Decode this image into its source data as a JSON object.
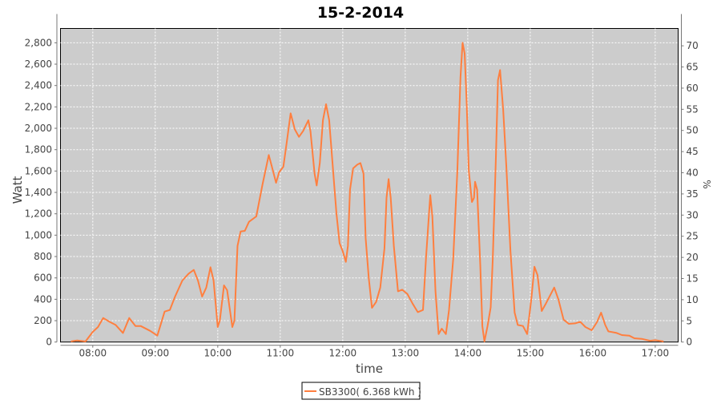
{
  "chart_data": {
    "type": "line",
    "title": "15-2-2014",
    "xlabel": "time",
    "ylabel": "Watt",
    "ylabel_right": "%",
    "xlim": [
      "07:29",
      "17:22"
    ],
    "ylim": [
      0,
      2934
    ],
    "ylim_right": [
      0,
      74.1
    ],
    "grid": true,
    "x_ticks": [
      "08:00",
      "09:00",
      "10:00",
      "11:00",
      "12:00",
      "13:00",
      "14:00",
      "15:00",
      "16:00",
      "17:00"
    ],
    "y_ticks": [
      "0",
      "200",
      "400",
      "600",
      "800",
      "1,000",
      "1,200",
      "1,400",
      "1,600",
      "1,800",
      "2,000",
      "2,200",
      "2,400",
      "2,600",
      "2,800"
    ],
    "y_ticks_right": [
      "0",
      "5",
      "10",
      "15",
      "20",
      "25",
      "30",
      "35",
      "40",
      "45",
      "50",
      "55",
      "60",
      "65",
      "70"
    ],
    "legend_position": "bottom",
    "plot_background": "#cccccc",
    "series": [
      {
        "name": "SB3300( 6.368 kWh )",
        "color": "#ff7f3f",
        "x": [
          "07:39",
          "07:45",
          "07:53",
          "08:00",
          "08:05",
          "08:10",
          "08:16",
          "08:22",
          "08:29",
          "08:35",
          "08:41",
          "08:46",
          "08:55",
          "09:02",
          "09:09",
          "09:14",
          "09:19",
          "09:26",
          "09:32",
          "09:37",
          "09:41",
          "09:45",
          "09:49",
          "09:53",
          "09:56",
          "10:00",
          "10:02",
          "10:06",
          "10:09",
          "10:14",
          "10:16",
          "10:19",
          "10:22",
          "10:26",
          "10:30",
          "10:37",
          "10:39",
          "10:43",
          "10:49",
          "10:52",
          "10:56",
          "10:59",
          "11:03",
          "11:06",
          "11:10",
          "11:14",
          "11:18",
          "11:22",
          "11:27",
          "11:29",
          "11:33",
          "11:35",
          "11:38",
          "11:41",
          "11:44",
          "11:47",
          "11:50",
          "11:54",
          "11:57",
          "12:00",
          "12:03",
          "12:05",
          "12:07",
          "12:10",
          "12:14",
          "12:17",
          "12:20",
          "12:22",
          "12:25",
          "12:28",
          "12:32",
          "12:36",
          "12:40",
          "12:42",
          "12:44",
          "12:46",
          "12:49",
          "12:53",
          "12:57",
          "13:02",
          "13:07",
          "13:12",
          "13:17",
          "13:20",
          "13:24",
          "13:26",
          "13:29",
          "13:32",
          "13:35",
          "13:39",
          "13:42",
          "13:46",
          "13:50",
          "13:53",
          "13:55",
          "13:57",
          "13:59",
          "14:01",
          "14:04",
          "14:06",
          "14:07",
          "14:09",
          "14:12",
          "14:14",
          "14:16",
          "14:19",
          "14:22",
          "14:24",
          "14:27",
          "14:29",
          "14:31",
          "14:34",
          "14:37",
          "14:41",
          "14:45",
          "14:48",
          "14:53",
          "14:57",
          "15:01",
          "15:04",
          "15:07",
          "15:11",
          "15:15",
          "15:23",
          "15:27",
          "15:32",
          "15:37",
          "15:43",
          "15:48",
          "15:53",
          "15:59",
          "16:04",
          "16:08",
          "16:12",
          "16:15",
          "16:23",
          "16:28",
          "16:35",
          "16:40",
          "16:47",
          "16:55",
          "17:00",
          "17:08"
        ],
        "values": [
          5,
          15,
          5,
          95,
          140,
          225,
          190,
          160,
          85,
          225,
          150,
          150,
          105,
          60,
          285,
          300,
          425,
          575,
          640,
          675,
          575,
          425,
          510,
          700,
          575,
          140,
          200,
          530,
          485,
          140,
          200,
          900,
          1035,
          1040,
          1125,
          1175,
          1275,
          1475,
          1750,
          1640,
          1490,
          1590,
          1640,
          1850,
          2140,
          1990,
          1920,
          1975,
          2075,
          1975,
          1575,
          1465,
          1675,
          2075,
          2225,
          2075,
          1700,
          1200,
          925,
          850,
          750,
          900,
          1425,
          1625,
          1660,
          1675,
          1575,
          975,
          600,
          320,
          375,
          510,
          875,
          1350,
          1525,
          1350,
          900,
          475,
          490,
          450,
          360,
          280,
          300,
          800,
          1375,
          1175,
          475,
          75,
          125,
          75,
          300,
          775,
          1600,
          2475,
          2800,
          2700,
          2225,
          1600,
          1310,
          1350,
          1500,
          1425,
          725,
          150,
          5,
          150,
          325,
          775,
          1725,
          2450,
          2545,
          2175,
          1650,
          850,
          275,
          160,
          150,
          75,
          400,
          705,
          625,
          290,
          360,
          510,
          400,
          210,
          170,
          175,
          190,
          140,
          110,
          185,
          275,
          160,
          100,
          85,
          65,
          60,
          35,
          30,
          12,
          17,
          5
        ]
      }
    ]
  }
}
